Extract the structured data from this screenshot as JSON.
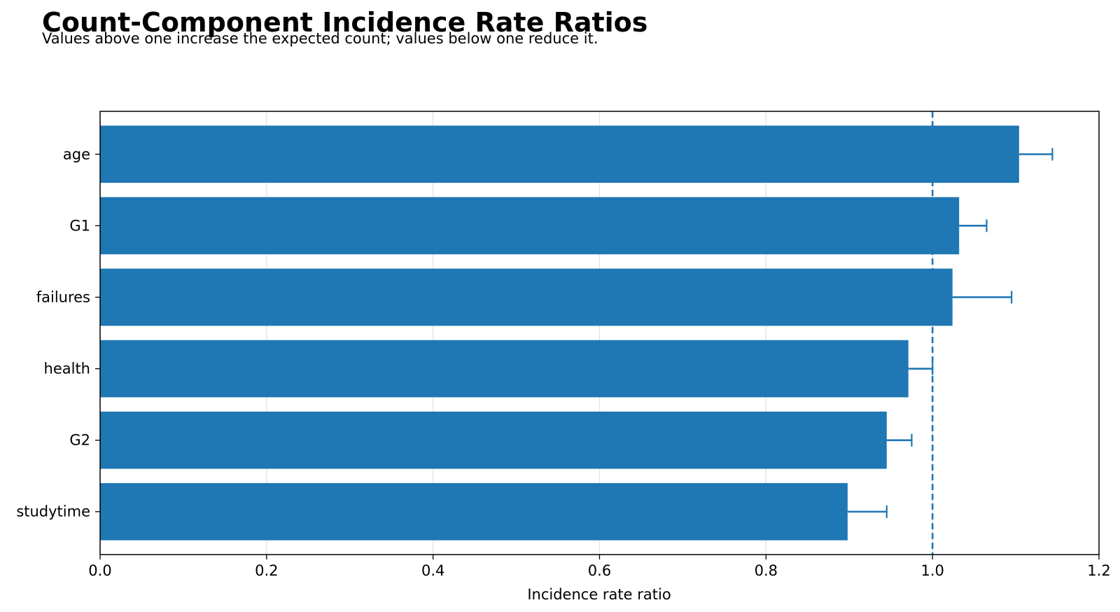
{
  "chart_data": {
    "type": "bar",
    "orientation": "horizontal",
    "title": "Count-Component Incidence Rate Ratios",
    "subtitle": "Values above one increase the expected count; values below one reduce it.",
    "xlabel": "Incidence rate ratio",
    "ylabel": "",
    "xlim": [
      0,
      1.2
    ],
    "xticks": [
      0.0,
      0.2,
      0.4,
      0.6,
      0.8,
      1.0,
      1.2
    ],
    "xtick_labels": [
      "0.0",
      "0.2",
      "0.4",
      "0.6",
      "0.8",
      "1.0",
      "1.2"
    ],
    "grid": "vertical",
    "reference_line": 1.0,
    "categories": [
      "age",
      "G1",
      "failures",
      "health",
      "G2",
      "studytime"
    ],
    "values": [
      1.104,
      1.032,
      1.024,
      0.971,
      0.945,
      0.898
    ],
    "upper_ci": [
      1.144,
      1.065,
      1.095,
      1.0,
      0.975,
      0.945
    ],
    "colors": {
      "bar": "#1f77b4",
      "errorbar": "#1f77b4",
      "reference_line": "#1f77b4",
      "grid": "#e0e0e0",
      "axis": "#000000"
    }
  }
}
